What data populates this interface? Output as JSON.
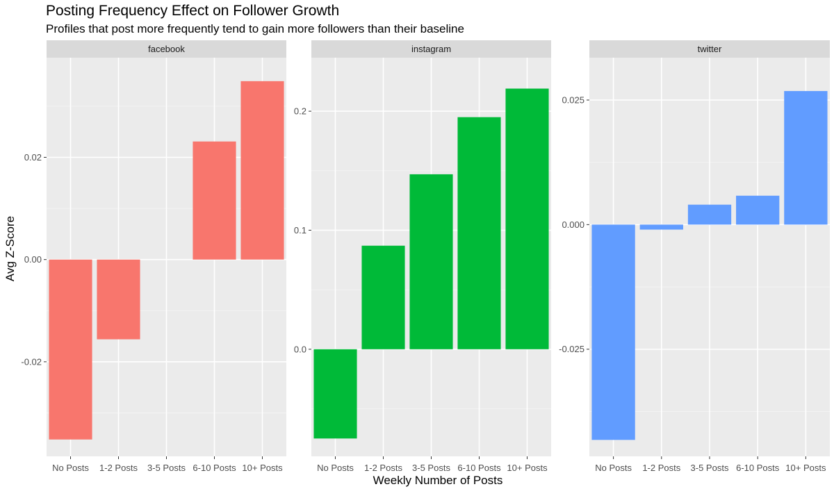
{
  "title": "Posting Frequency Effect on Follower Growth",
  "subtitle": "Profiles that post more frequently tend to gain more followers than their baseline",
  "chart_data": {
    "type": "bar",
    "layout": "faceted",
    "xlabel": "Weekly Number of Posts",
    "ylabel": "Avg Z-Score",
    "categories": [
      "No Posts",
      "1-2 Posts",
      "3-5 Posts",
      "6-10 Posts",
      "10+ Posts"
    ],
    "panels": [
      {
        "name": "facebook",
        "color": "#F8766D",
        "values": [
          -0.0352,
          -0.0156,
          0.0,
          0.0231,
          0.0349
        ],
        "ylim": [
          -0.0385,
          0.0395
        ],
        "ticks": [
          -0.02,
          0.0,
          0.02
        ],
        "tick_labels": [
          "-0.02",
          "0.00",
          "0.02"
        ],
        "minor_ticks": [
          -0.03,
          -0.01,
          0.01,
          0.03
        ]
      },
      {
        "name": "instagram",
        "color": "#00BA38",
        "values": [
          -0.075,
          0.087,
          0.147,
          0.195,
          0.219
        ],
        "ylim": [
          -0.09,
          0.245
        ],
        "ticks": [
          0.0,
          0.1,
          0.2
        ],
        "tick_labels": [
          "0.0",
          "0.1",
          "0.2"
        ],
        "minor_ticks": [
          -0.05,
          0.05,
          0.15
        ]
      },
      {
        "name": "twitter",
        "color": "#619CFF",
        "values": [
          -0.0432,
          -0.001,
          0.004,
          0.0058,
          0.0268
        ],
        "ylim": [
          -0.0465,
          0.0335
        ],
        "ticks": [
          -0.025,
          0.0,
          0.025
        ],
        "tick_labels": [
          "-0.025",
          "0.000",
          "0.025"
        ],
        "minor_ticks": [
          -0.0375,
          -0.0125,
          0.0125
        ]
      }
    ]
  }
}
